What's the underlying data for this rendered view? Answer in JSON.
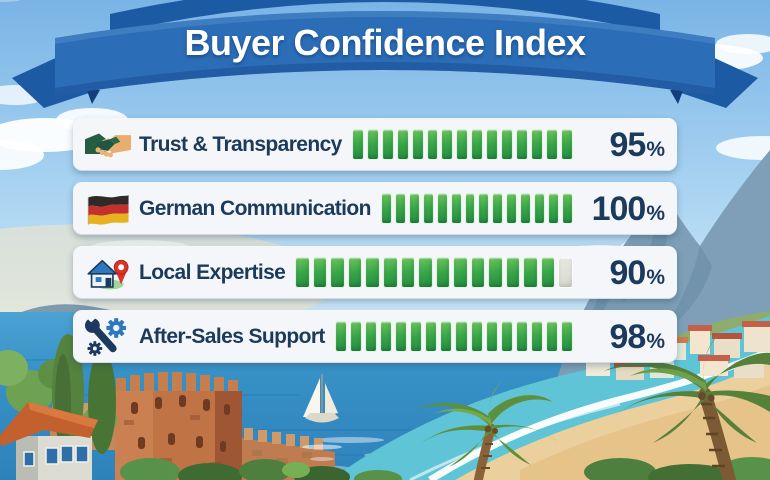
{
  "banner": {
    "title": "Buyer Confidence Index"
  },
  "colors": {
    "banner_blue": "#2B6DB6",
    "banner_blue_dark": "#1D5AA4",
    "banner_fold": "#123E7C",
    "text_white": "#FFFFFF",
    "card_bg": "#F4F6F9",
    "text_navy": "#1B3A5C",
    "seg_green_light": "#6CC75B",
    "seg_green_mid": "#3AA64A",
    "seg_green_dark": "#1E8A3C",
    "seg_empty": "#DEDFD6"
  },
  "rows": [
    {
      "label": "Trust & Transparency",
      "icon": "handshake-icon",
      "value": "95",
      "unit": "%",
      "segments_total": 15,
      "segments_filled": 15
    },
    {
      "label": "German Communication",
      "icon": "german-flag-icon",
      "value": "100",
      "unit": "%",
      "segments_total": 14,
      "segments_filled": 14
    },
    {
      "label": "Local Expertise",
      "icon": "house-location-icon",
      "value": "90",
      "unit": "%",
      "segments_total": 16,
      "segments_filled": 15
    },
    {
      "label": "After-Sales Support",
      "icon": "wrench-gear-icon",
      "value": "98",
      "unit": "%",
      "segments_total": 16,
      "segments_filled": 16
    }
  ],
  "chart_data": {
    "type": "bar",
    "orientation": "horizontal",
    "title": "Buyer Confidence Index",
    "categories": [
      "Trust & Transparency",
      "German Communication",
      "Local Expertise",
      "After-Sales Support"
    ],
    "values": [
      95,
      100,
      90,
      98
    ],
    "value_labels": [
      "95%",
      "100%",
      "90%",
      "98%"
    ],
    "xlabel": "",
    "ylabel": "",
    "xlim": [
      0,
      100
    ],
    "grid": false,
    "legend": "none",
    "bar_style": "segmented-green-blocks"
  }
}
